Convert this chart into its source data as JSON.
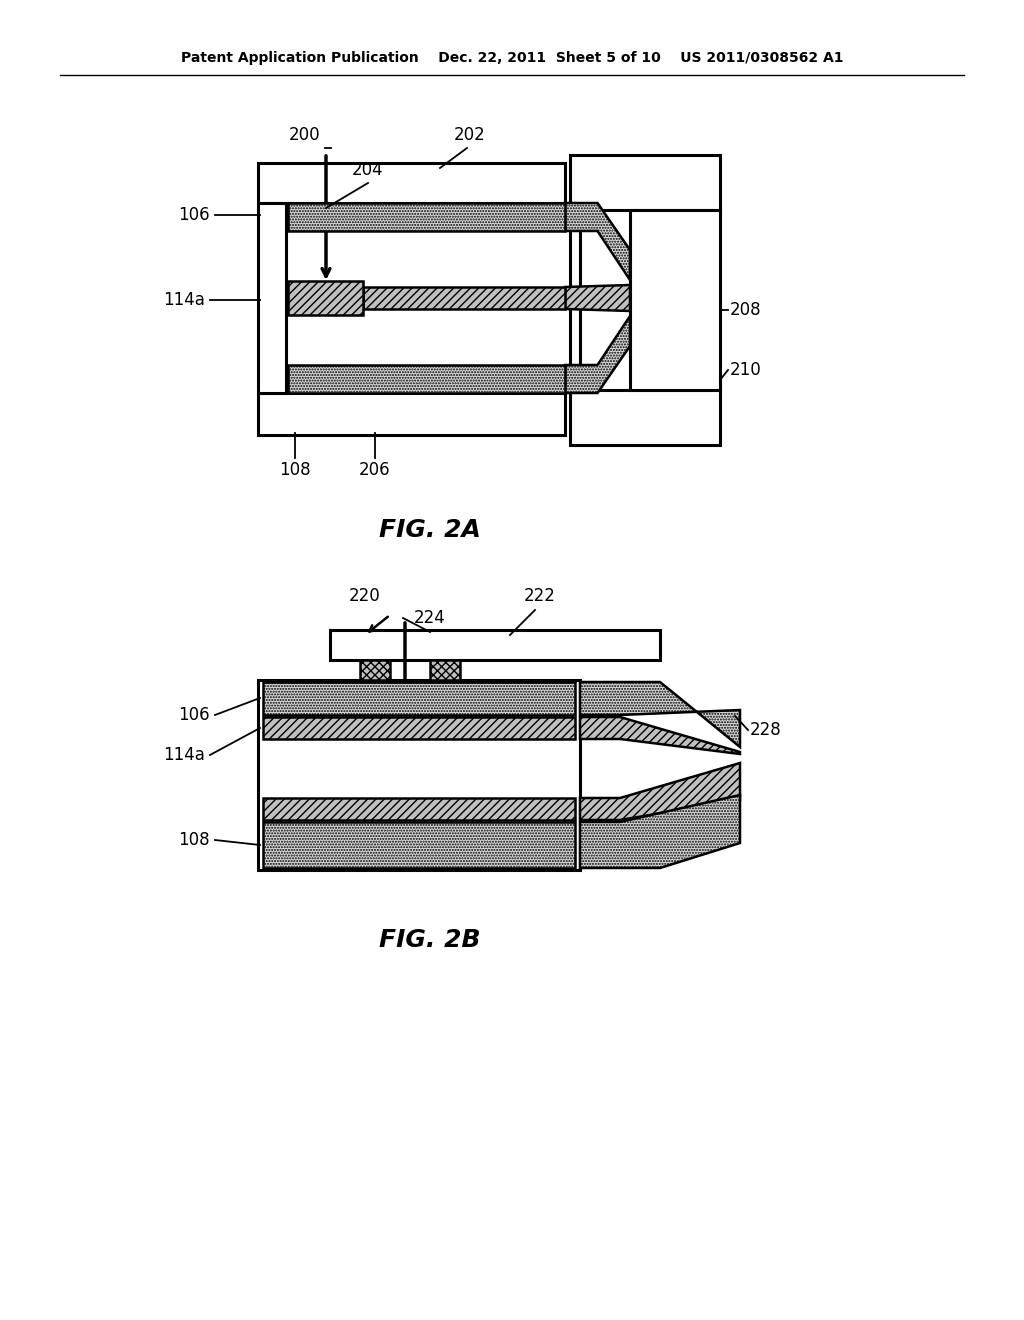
{
  "bg_color": "#ffffff",
  "header_text": "Patent Application Publication    Dec. 22, 2011  Sheet 5 of 10    US 2011/0308562 A1",
  "fig2a_label": "FIG. 2A",
  "fig2b_label": "FIG. 2B"
}
